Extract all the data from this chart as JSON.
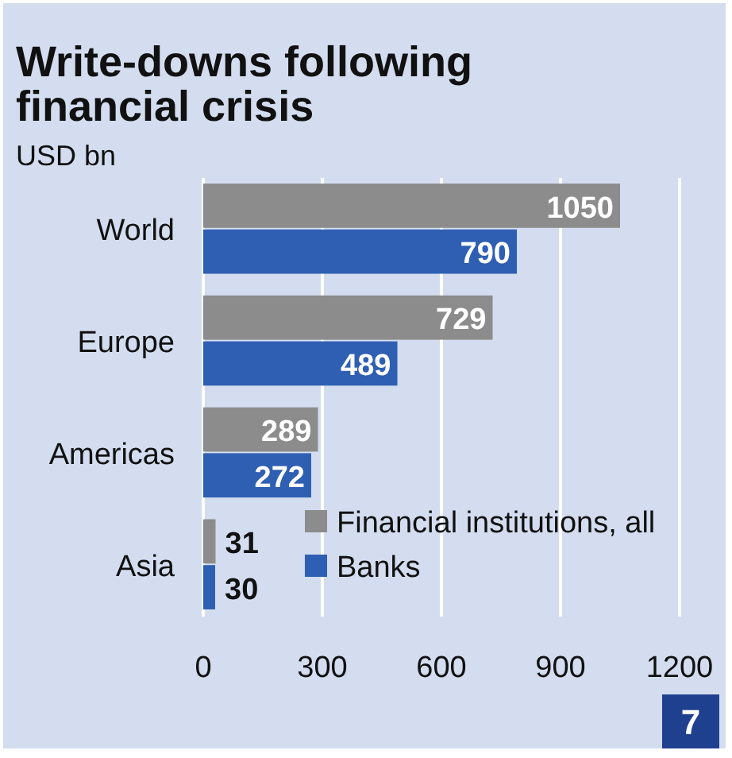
{
  "chart_data": {
    "type": "bar",
    "orientation": "horizontal",
    "title": "Write-downs following financial crisis",
    "subtitle": "USD bn",
    "categories": [
      "World",
      "Europe",
      "Americas",
      "Asia"
    ],
    "series": [
      {
        "name": "Financial institutions, all",
        "color": "#8c8c8c",
        "values": [
          1050,
          729,
          289,
          31
        ]
      },
      {
        "name": "Banks",
        "color": "#2f5fb3",
        "values": [
          790,
          489,
          272,
          30
        ]
      }
    ],
    "xlim": [
      0,
      1200
    ],
    "xticks": [
      0,
      300,
      600,
      900,
      1200
    ],
    "grid": "x",
    "legend": "bottom right",
    "data_labels": true,
    "annotations": [
      "7"
    ]
  }
}
